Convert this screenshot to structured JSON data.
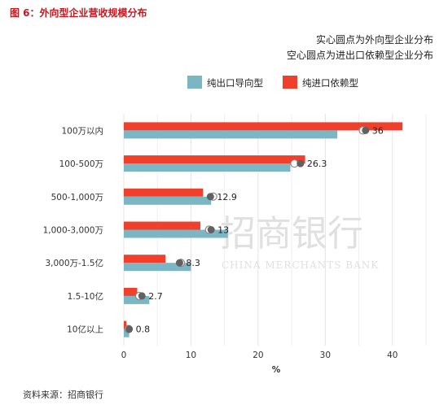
{
  "figure_title": "图 6：外向型企业营收规模分布",
  "source": "资料来源：招商银行",
  "watermark": {
    "cn": "招商银行",
    "en": "CHINA MERCHANTS BANK"
  },
  "chart_data": {
    "type": "bar",
    "orientation": "horizontal",
    "notes": [
      "实心圆点为外向型企业分布",
      "空心圆点为进出口依赖型企业分布"
    ],
    "categories": [
      "100万以内",
      "100-500万",
      "500-1,000万",
      "1,000-3,000万",
      "3,000万-1.5亿",
      "1.5-10亿",
      "10亿以上"
    ],
    "series": [
      {
        "name": "纯出口导向型",
        "color": "#7ab6c3",
        "values": [
          31.8,
          24.8,
          13,
          15.5,
          10,
          3.8,
          0.8
        ]
      },
      {
        "name": "纯进口依赖型",
        "color": "#f0402c",
        "values": [
          41.5,
          27,
          11.8,
          11.4,
          6.2,
          2,
          0.4
        ]
      }
    ],
    "markers": {
      "solid": {
        "color": "#616161",
        "values": [
          36,
          26.3,
          12.9,
          13,
          8.3,
          2.7,
          0.8
        ]
      },
      "hollow": {
        "values": [
          35.6,
          25.4,
          13.3,
          12.7,
          8.5,
          2.3,
          0.7
        ]
      }
    },
    "data_labels": [
      "36",
      "26.3",
      "12.9",
      "13",
      "8.3",
      "2.7",
      "0.8"
    ],
    "xlabel": "%",
    "xlim": [
      0,
      45
    ],
    "xticks": [
      0,
      10,
      20,
      30,
      40
    ],
    "grid": true,
    "legend_position": "top"
  }
}
